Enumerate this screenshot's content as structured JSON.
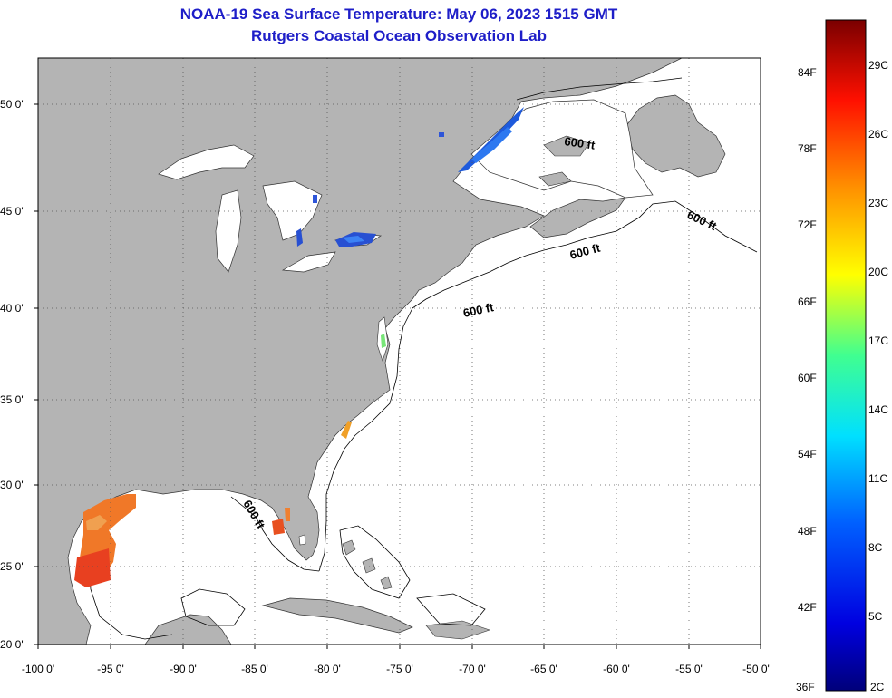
{
  "title": "NOAA-19 Sea Surface Temperature:  May 06, 2023 1515 GMT",
  "subtitle": "Rutgers Coastal Ocean Observation Lab",
  "lat_labels": [
    "50 0'",
    "45 0'",
    "40 0'",
    "35 0'",
    "30 0'",
    "25 0'",
    "20 0'"
  ],
  "lon_labels": [
    "-100 0'",
    "-95 0'",
    "-90 0'",
    "-85 0'",
    "-80 0'",
    "-75 0'",
    "-70 0'",
    "-65 0'",
    "-60 0'",
    "-55 0'",
    "-50 0'"
  ],
  "contour_label": "600 ft",
  "colorbar": {
    "fahrenheit": [
      "84F",
      "78F",
      "72F",
      "66F",
      "60F",
      "54F",
      "48F",
      "42F",
      "36F"
    ],
    "celsius": [
      "29C",
      "26C",
      "23C",
      "20C",
      "17C",
      "14C",
      "11C",
      "8C",
      "5C",
      "2C"
    ]
  },
  "colors": {
    "land": "#b4b4b4",
    "water": "#ffffff",
    "title": "#1e1ec8",
    "grid": "#555555"
  }
}
